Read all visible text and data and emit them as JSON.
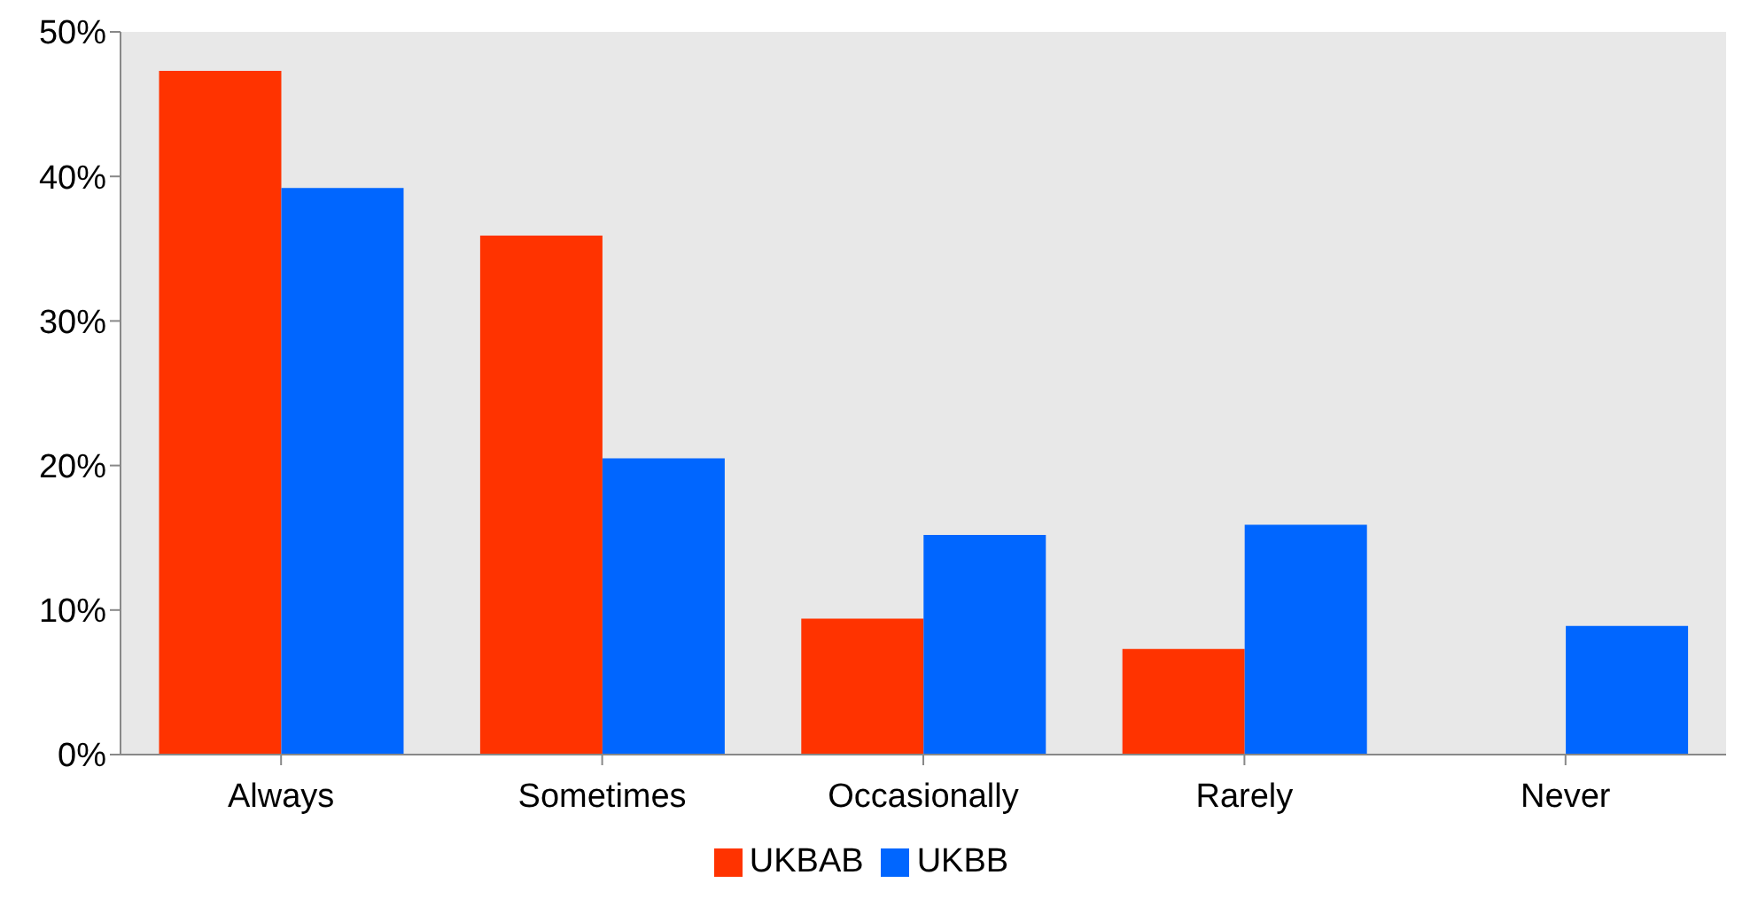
{
  "chart_data": {
    "type": "bar",
    "categories": [
      "Always",
      "Sometimes",
      "Occasionally",
      "Rarely",
      "Never"
    ],
    "series": [
      {
        "name": "UKBAB",
        "color": "#ff3300",
        "values": [
          47.3,
          35.9,
          9.4,
          7.3,
          0
        ]
      },
      {
        "name": "UKBB",
        "color": "#0066ff",
        "values": [
          39.2,
          20.5,
          15.2,
          15.9,
          8.9
        ]
      }
    ],
    "ylim": [
      0,
      50
    ],
    "yticks": [
      {
        "value": 0,
        "label": "0%"
      },
      {
        "value": 10,
        "label": "10%"
      },
      {
        "value": 20,
        "label": "20%"
      },
      {
        "value": 30,
        "label": "30%"
      },
      {
        "value": 40,
        "label": "40%"
      },
      {
        "value": 50,
        "label": "50%"
      }
    ],
    "legend": "bottom"
  }
}
